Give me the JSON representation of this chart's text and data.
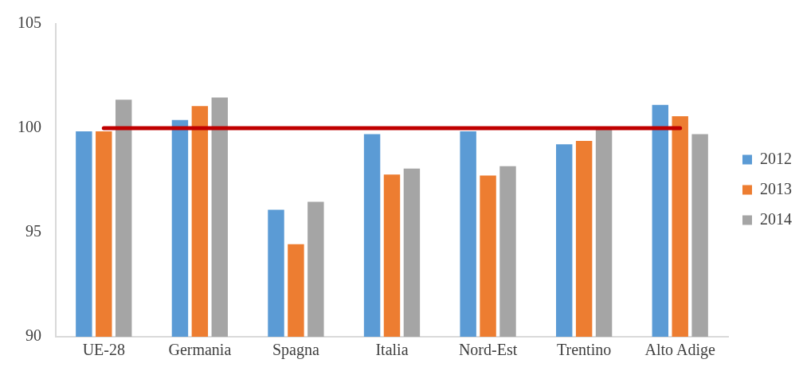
{
  "chart_data": {
    "type": "bar",
    "categories": [
      "UE-28",
      "Germania",
      "Spagna",
      "Italia",
      "Nord-Est",
      "Trentino",
      "Alto Adige"
    ],
    "series": [
      {
        "name": "2012",
        "color": "#5b9bd5",
        "values": [
          99.85,
          100.39,
          96.09,
          99.71,
          99.85,
          99.23,
          101.12
        ]
      },
      {
        "name": "2013",
        "color": "#ed7d31",
        "values": [
          99.85,
          101.06,
          94.44,
          97.78,
          97.73,
          99.39,
          100.57
        ]
      },
      {
        "name": "2014",
        "color": "#a5a5a5",
        "values": [
          101.36,
          101.47,
          96.47,
          98.06,
          98.18,
          99.95,
          99.71
        ]
      },
      {
        "type": "line",
        "color": "#c00000",
        "values": [
          100,
          100,
          100,
          100,
          100,
          100,
          100
        ]
      }
    ],
    "ylim": [
      90,
      105
    ],
    "yticks": [
      90,
      95,
      100,
      105
    ],
    "grid": false,
    "legend": "right",
    "marker": "none"
  }
}
